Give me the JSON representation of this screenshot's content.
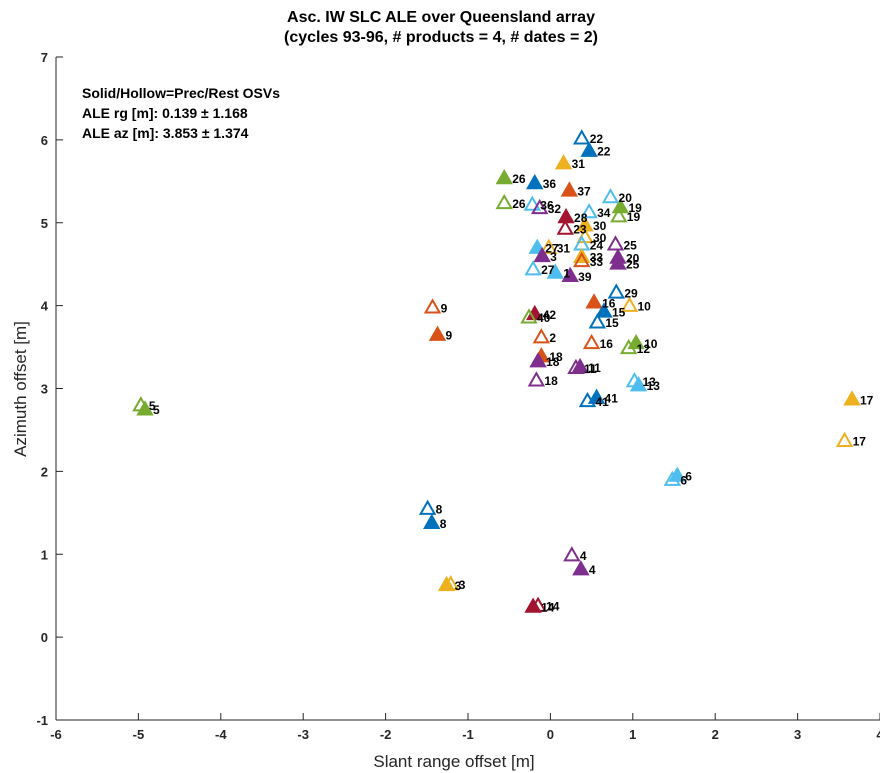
{
  "chart_data": {
    "type": "scatter",
    "title": [
      "Asc. IW SLC ALE over Queensland array",
      "(cycles 93-96,  # products = 4, # dates = 2)"
    ],
    "xlabel": "Slant range offset [m]",
    "ylabel": "Azimuth offset [m]",
    "xlim": [
      -6,
      4
    ],
    "ylim": [
      -1,
      7
    ],
    "xticks": [
      -6,
      -5,
      -4,
      -3,
      -2,
      -1,
      0,
      1,
      2,
      3,
      4
    ],
    "yticks": [
      -1,
      0,
      1,
      2,
      3,
      4,
      5,
      6,
      7
    ],
    "grid": false,
    "annotations": [
      "Solid/Hollow=Prec/Rest OSVs",
      "ALE rg [m]: 0.139 ± 1.168",
      "ALE az [m]: 3.853 ± 1.374"
    ],
    "colors": {
      "blue": "#0072BD",
      "orange": "#D95319",
      "yellow": "#EDB120",
      "purple": "#7E2F8E",
      "green": "#77AC30",
      "cyan": "#4DBEEE",
      "maroon": "#A2142F"
    },
    "points": [
      {
        "label": "22",
        "x": 0.38,
        "y": 6.02,
        "filled": false,
        "color": "blue"
      },
      {
        "label": "22",
        "x": 0.47,
        "y": 5.87,
        "filled": true,
        "color": "blue"
      },
      {
        "label": "31",
        "x": 0.16,
        "y": 5.72,
        "filled": true,
        "color": "yellow"
      },
      {
        "label": "26",
        "x": -0.56,
        "y": 5.54,
        "filled": true,
        "color": "green"
      },
      {
        "label": "36",
        "x": -0.19,
        "y": 5.48,
        "filled": true,
        "color": "blue"
      },
      {
        "label": "37",
        "x": 0.23,
        "y": 5.39,
        "filled": true,
        "color": "orange"
      },
      {
        "label": "20",
        "x": 0.73,
        "y": 5.31,
        "filled": false,
        "color": "cyan"
      },
      {
        "label": "19",
        "x": 0.85,
        "y": 5.19,
        "filled": true,
        "color": "green"
      },
      {
        "label": "26",
        "x": -0.56,
        "y": 5.24,
        "filled": false,
        "color": "green"
      },
      {
        "label": "36",
        "x": -0.22,
        "y": 5.22,
        "filled": false,
        "color": "cyan"
      },
      {
        "label": "32",
        "x": -0.13,
        "y": 5.18,
        "filled": false,
        "color": "purple"
      },
      {
        "label": "34",
        "x": 0.47,
        "y": 5.13,
        "filled": false,
        "color": "cyan"
      },
      {
        "label": "28",
        "x": 0.19,
        "y": 5.07,
        "filled": true,
        "color": "maroon"
      },
      {
        "label": "19",
        "x": 0.83,
        "y": 5.08,
        "filled": false,
        "color": "green"
      },
      {
        "label": "30",
        "x": 0.42,
        "y": 4.97,
        "filled": true,
        "color": "yellow"
      },
      {
        "label": "23",
        "x": 0.18,
        "y": 4.93,
        "filled": false,
        "color": "maroon"
      },
      {
        "label": "30",
        "x": 0.42,
        "y": 4.83,
        "filled": false,
        "color": "yellow"
      },
      {
        "label": "24",
        "x": 0.38,
        "y": 4.74,
        "filled": false,
        "color": "cyan"
      },
      {
        "label": "25",
        "x": 0.79,
        "y": 4.74,
        "filled": false,
        "color": "purple"
      },
      {
        "label": "27",
        "x": -0.16,
        "y": 4.7,
        "filled": true,
        "color": "cyan"
      },
      {
        "label": "31",
        "x": -0.02,
        "y": 4.7,
        "filled": false,
        "color": "yellow"
      },
      {
        "label": "3",
        "x": -0.1,
        "y": 4.6,
        "filled": true,
        "color": "purple"
      },
      {
        "label": "33",
        "x": 0.38,
        "y": 4.59,
        "filled": true,
        "color": "yellow"
      },
      {
        "label": "20",
        "x": 0.82,
        "y": 4.58,
        "filled": true,
        "color": "purple"
      },
      {
        "label": "33",
        "x": 0.38,
        "y": 4.54,
        "filled": false,
        "color": "orange"
      },
      {
        "label": "25",
        "x": 0.82,
        "y": 4.51,
        "filled": true,
        "color": "purple"
      },
      {
        "label": "27",
        "x": -0.21,
        "y": 4.44,
        "filled": false,
        "color": "cyan"
      },
      {
        "label": "1",
        "x": 0.06,
        "y": 4.4,
        "filled": true,
        "color": "cyan"
      },
      {
        "label": "39",
        "x": 0.24,
        "y": 4.36,
        "filled": true,
        "color": "purple"
      },
      {
        "label": "29",
        "x": 0.8,
        "y": 4.16,
        "filled": false,
        "color": "blue"
      },
      {
        "label": "16",
        "x": 0.53,
        "y": 4.04,
        "filled": true,
        "color": "orange"
      },
      {
        "label": "9",
        "x": -1.43,
        "y": 3.98,
        "filled": false,
        "color": "orange"
      },
      {
        "label": "10",
        "x": 0.96,
        "y": 4.0,
        "filled": false,
        "color": "yellow"
      },
      {
        "label": "15",
        "x": 0.65,
        "y": 3.93,
        "filled": true,
        "color": "blue"
      },
      {
        "label": "42",
        "x": -0.19,
        "y": 3.9,
        "filled": true,
        "color": "maroon"
      },
      {
        "label": "40",
        "x": -0.26,
        "y": 3.86,
        "filled": false,
        "color": "green"
      },
      {
        "label": "15",
        "x": 0.57,
        "y": 3.8,
        "filled": false,
        "color": "blue"
      },
      {
        "label": "9",
        "x": -1.37,
        "y": 3.65,
        "filled": true,
        "color": "orange"
      },
      {
        "label": "2",
        "x": -0.11,
        "y": 3.62,
        "filled": false,
        "color": "orange"
      },
      {
        "label": "16",
        "x": 0.5,
        "y": 3.55,
        "filled": false,
        "color": "orange"
      },
      {
        "label": "10",
        "x": 1.04,
        "y": 3.55,
        "filled": true,
        "color": "green"
      },
      {
        "label": "12",
        "x": 0.95,
        "y": 3.49,
        "filled": false,
        "color": "green"
      },
      {
        "label": "18",
        "x": -0.11,
        "y": 3.39,
        "filled": true,
        "color": "orange"
      },
      {
        "label": "18",
        "x": -0.15,
        "y": 3.33,
        "filled": true,
        "color": "purple"
      },
      {
        "label": "11",
        "x": 0.36,
        "y": 3.26,
        "filled": true,
        "color": "purple"
      },
      {
        "label": "11",
        "x": 0.31,
        "y": 3.25,
        "filled": false,
        "color": "purple"
      },
      {
        "label": "18",
        "x": -0.17,
        "y": 3.1,
        "filled": false,
        "color": "purple"
      },
      {
        "label": "13",
        "x": 1.02,
        "y": 3.09,
        "filled": false,
        "color": "cyan"
      },
      {
        "label": "13",
        "x": 1.07,
        "y": 3.04,
        "filled": true,
        "color": "cyan"
      },
      {
        "label": "17",
        "x": 3.66,
        "y": 2.87,
        "filled": true,
        "color": "yellow"
      },
      {
        "label": "41",
        "x": 0.56,
        "y": 2.89,
        "filled": true,
        "color": "blue"
      },
      {
        "label": "41",
        "x": 0.45,
        "y": 2.85,
        "filled": false,
        "color": "blue"
      },
      {
        "label": "5",
        "x": -4.97,
        "y": 2.8,
        "filled": false,
        "color": "green"
      },
      {
        "label": "5",
        "x": -4.92,
        "y": 2.75,
        "filled": true,
        "color": "green"
      },
      {
        "label": "17",
        "x": 3.57,
        "y": 2.37,
        "filled": false,
        "color": "yellow"
      },
      {
        "label": "6",
        "x": 1.54,
        "y": 1.95,
        "filled": true,
        "color": "cyan"
      },
      {
        "label": "6",
        "x": 1.48,
        "y": 1.9,
        "filled": false,
        "color": "cyan"
      },
      {
        "label": "8",
        "x": -1.49,
        "y": 1.55,
        "filled": false,
        "color": "blue"
      },
      {
        "label": "8",
        "x": -1.44,
        "y": 1.38,
        "filled": true,
        "color": "blue"
      },
      {
        "label": "4",
        "x": 0.26,
        "y": 0.99,
        "filled": false,
        "color": "purple"
      },
      {
        "label": "4",
        "x": 0.37,
        "y": 0.82,
        "filled": true,
        "color": "purple"
      },
      {
        "label": "3",
        "x": -1.26,
        "y": 0.63,
        "filled": true,
        "color": "yellow"
      },
      {
        "label": "3",
        "x": -1.21,
        "y": 0.64,
        "filled": false,
        "color": "yellow"
      },
      {
        "label": "14",
        "x": -0.21,
        "y": 0.37,
        "filled": true,
        "color": "maroon"
      },
      {
        "label": "14",
        "x": -0.15,
        "y": 0.38,
        "filled": false,
        "color": "maroon"
      }
    ]
  }
}
